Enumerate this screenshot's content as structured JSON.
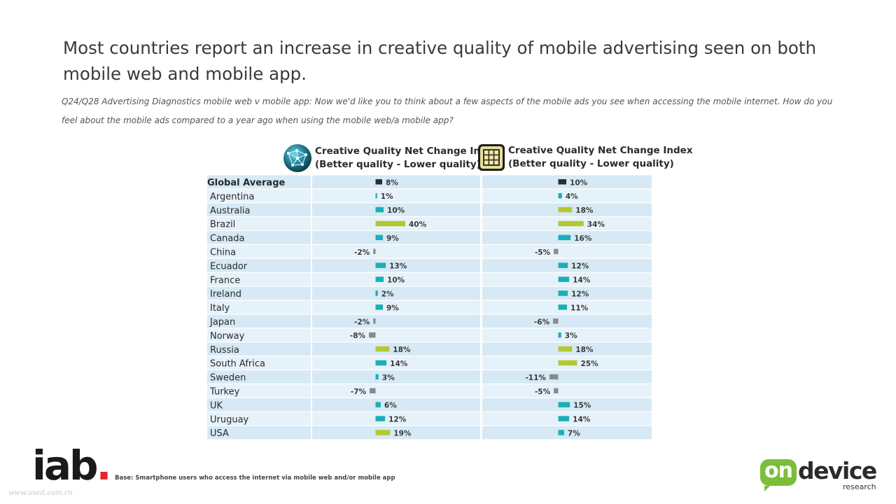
{
  "title": "Most countries report an increase in creative quality of mobile advertising seen on both mobile web and mobile app.",
  "question": "Q24/Q28 Advertising Diagnostics mobile web v mobile app: Now we'd like you to think about a few aspects of the mobile ads you see when accessing the mobile internet. How do you feel about the mobile ads compared to a year ago when using the mobile web/a mobile app?",
  "columns": {
    "web": {
      "line1": "Creative Quality Net Change Index",
      "line2": "(Better quality - Lower quality)",
      "icon": "globe-icon"
    },
    "app": {
      "line1": "Creative Quality Net Change Index",
      "line2": "(Better quality - Lower quality)",
      "icon": "app-grid-icon"
    }
  },
  "footer": {
    "base": "Base: Smartphone users who access the internet via mobile web and/or mobile app",
    "iab_logo": "iab",
    "iab_dot": ".",
    "watermark": "www.useit.com.cn",
    "ondevice_on": "on",
    "ondevice_device": "device",
    "ondevice_research": "research"
  },
  "colors": {
    "row_bg": "#d6e9f5",
    "row_bg_alt": "#e6f2fa",
    "teal": "#1aafb8",
    "lime": "#b3c832",
    "gray": "#8a8a8a",
    "dark": "#2d2d2d"
  },
  "chart_data": {
    "type": "bar",
    "orientation": "horizontal",
    "categories": [
      "Global Average",
      "Argentina",
      "Australia",
      "Brazil",
      "Canada",
      "China",
      "Ecuador",
      "France",
      "Ireland",
      "Italy",
      "Japan",
      "Norway",
      "Russia",
      "South Africa",
      "Sweden",
      "Turkey",
      "UK",
      "Uruguay",
      "USA"
    ],
    "series": [
      {
        "name": "",
        "values": [
          8,
          1,
          10,
          40,
          9,
          -2,
          13,
          10,
          2,
          9,
          -2,
          -8,
          18,
          14,
          3,
          -7,
          6,
          12,
          19
        ]
      },
      {
        "name": "",
        "values": [
          10,
          4,
          18,
          34,
          16,
          -5,
          12,
          14,
          12,
          11,
          -6,
          3,
          18,
          25,
          -11,
          -5,
          15,
          14,
          7
        ]
      }
    ],
    "unit": "%"
  }
}
